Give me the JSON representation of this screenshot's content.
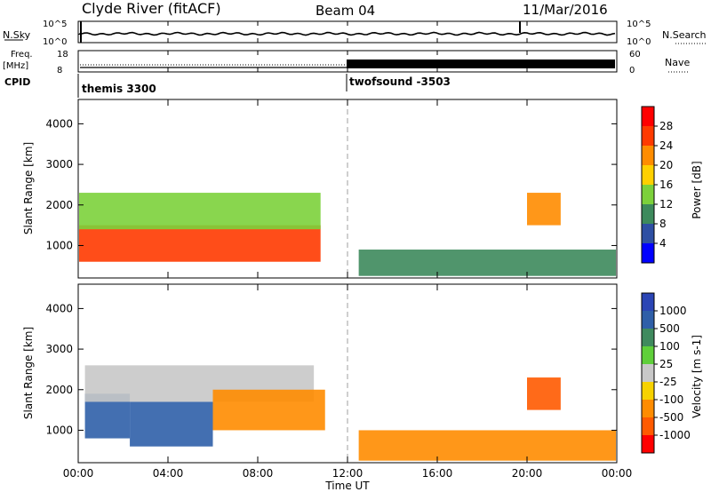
{
  "header": {
    "title": "Clyde River (fitACF)",
    "beam": "Beam 04",
    "date": "11/Mar/2016"
  },
  "top_panels": {
    "nsky_label": "N.Sky",
    "nsky_ticks": [
      "10^5",
      "10^0"
    ],
    "nsearch_label": "N.Search",
    "nsearch_ticks": [
      "10^5",
      "10^0"
    ],
    "freq_label_1": "Freq.",
    "freq_label_2": "[MHz]",
    "freq_ticks": [
      "18",
      "8"
    ],
    "nave_label": "Nave",
    "nave_ticks": [
      "60",
      "0"
    ],
    "cpid_label": "CPID",
    "cpid_1": "themis 3300",
    "cpid_2": "twofsound -3503"
  },
  "x_axis": {
    "label": "Time UT",
    "ticks": [
      "00:00",
      "04:00",
      "08:00",
      "12:00",
      "16:00",
      "20:00",
      "00:00"
    ]
  },
  "power_colorbar": {
    "label": "Power [dB]",
    "ticks": [
      "28",
      "24",
      "20",
      "16",
      "12",
      "8",
      "4"
    ],
    "colors": [
      "#0000ff",
      "#2e4fa3",
      "#3d8a5c",
      "#7cd13b",
      "#ffd000",
      "#ff8c00",
      "#ff3a00",
      "#ff0000"
    ]
  },
  "velocity_colorbar": {
    "label": "Velocity [m s-1]",
    "ticks": [
      "1000",
      "500",
      "100",
      "25",
      "-25",
      "-100",
      "-500",
      "-1000"
    ],
    "colors": [
      "#2b45b5",
      "#2f5fa8",
      "#3f8a5e",
      "#5fcf3a",
      "#c8c8c8",
      "#f7d200",
      "#ff8c00",
      "#ff5a00",
      "#ff0000"
    ]
  },
  "chart_data": [
    {
      "type": "heatmap",
      "title": "",
      "xlabel": "Time UT",
      "ylabel": "Slant Range [km]",
      "colorbar_label": "Power [dB]",
      "xlim": [
        0,
        24
      ],
      "ylim": [
        200,
        4600
      ],
      "yticks": [
        1000,
        2000,
        3000,
        4000
      ],
      "xticks": [
        "00:00",
        "04:00",
        "08:00",
        "12:00",
        "16:00",
        "20:00",
        "00:00"
      ],
      "regions": [
        {
          "t0": 0.0,
          "t1": 10.8,
          "r0": 600,
          "r1": 1500,
          "value_db": 26
        },
        {
          "t0": 0.0,
          "t1": 10.8,
          "r0": 1400,
          "r1": 2300,
          "value_db": 12
        },
        {
          "t0": 12.5,
          "t1": 24.0,
          "r0": 250,
          "r1": 900,
          "value_db": 10
        },
        {
          "t0": 20.0,
          "t1": 21.5,
          "r0": 1500,
          "r1": 2300,
          "value_db": 22
        }
      ]
    },
    {
      "type": "heatmap",
      "title": "",
      "xlabel": "Time UT",
      "ylabel": "Slant Range [km]",
      "colorbar_label": "Velocity [m s-1]",
      "xlim": [
        0,
        24
      ],
      "ylim": [
        200,
        4600
      ],
      "yticks": [
        1000,
        2000,
        3000,
        4000
      ],
      "xticks": [
        "00:00",
        "04:00",
        "08:00",
        "12:00",
        "16:00",
        "20:00",
        "00:00"
      ],
      "regions": [
        {
          "t0": 0.3,
          "t1": 2.3,
          "r0": 800,
          "r1": 1900,
          "value_ms": 700
        },
        {
          "t0": 2.3,
          "t1": 6.0,
          "r0": 600,
          "r1": 1700,
          "value_ms": 300
        },
        {
          "t0": 0.3,
          "t1": 10.5,
          "r0": 1700,
          "r1": 2600,
          "value_ms": 0
        },
        {
          "t0": 6.0,
          "t1": 11.0,
          "r0": 1000,
          "r1": 2000,
          "value_ms": -150
        },
        {
          "t0": 12.5,
          "t1": 24.0,
          "r0": 250,
          "r1": 1000,
          "value_ms": -200
        },
        {
          "t0": 20.0,
          "t1": 21.5,
          "r0": 1500,
          "r1": 2300,
          "value_ms": -700
        }
      ]
    }
  ]
}
